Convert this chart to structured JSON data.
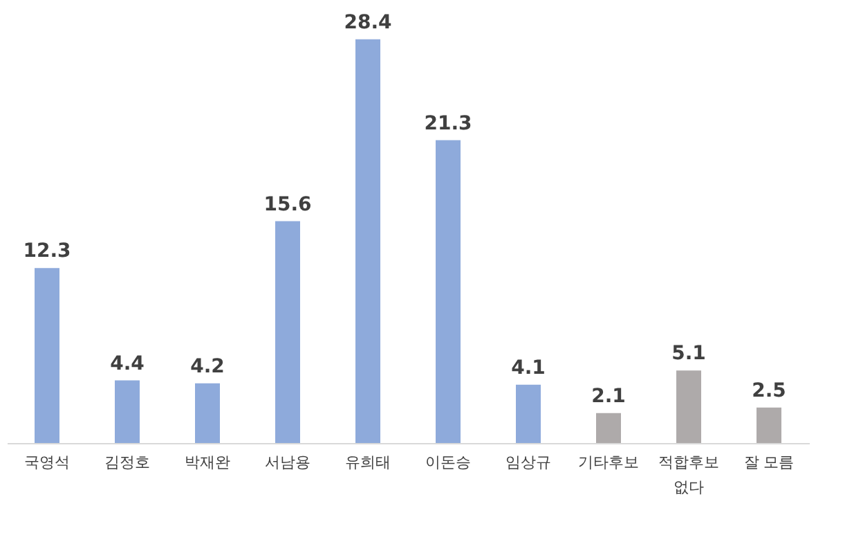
{
  "chart_data": {
    "type": "bar",
    "categories": [
      "국영석",
      "김정호",
      "박재완",
      "서남용",
      "유희태",
      "이돈승",
      "임상규",
      "기타후보",
      "적합후보\n없다",
      "잘 모름"
    ],
    "values": [
      12.3,
      4.4,
      4.2,
      15.6,
      28.4,
      21.3,
      4.1,
      2.1,
      5.1,
      2.5
    ],
    "colors": [
      "#8eaadb",
      "#8eaadb",
      "#8eaadb",
      "#8eaadb",
      "#8eaadb",
      "#8eaadb",
      "#8eaadb",
      "#aeaaaa",
      "#aeaaaa",
      "#aeaaaa"
    ],
    "data_labels": true
  }
}
